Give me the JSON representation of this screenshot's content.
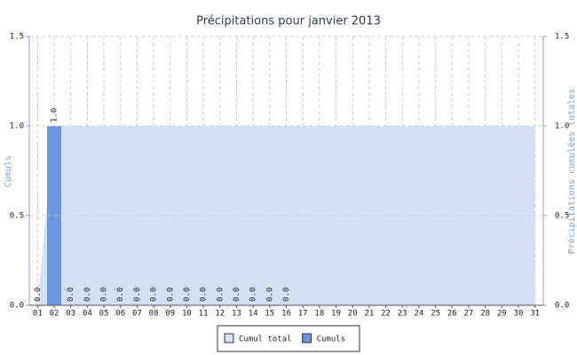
{
  "chart_data": {
    "type": "bar",
    "title": "Précipitations pour janvier 2013",
    "y_label": "Cumuls",
    "y2_label": "Précipitations cumulées totales",
    "categories": [
      "01",
      "02",
      "03",
      "04",
      "05",
      "06",
      "07",
      "08",
      "09",
      "10",
      "11",
      "12",
      "13",
      "14",
      "15",
      "16",
      "17",
      "18",
      "19",
      "20",
      "21",
      "22",
      "23",
      "24",
      "25",
      "26",
      "27",
      "28",
      "29",
      "30",
      "31"
    ],
    "series": [
      {
        "name": "Cumul total",
        "type": "area",
        "axis": "y2",
        "color": "#d3e0f8",
        "values": [
          0,
          1,
          1,
          1,
          1,
          1,
          1,
          1,
          1,
          1,
          1,
          1,
          1,
          1,
          1,
          1,
          1,
          1,
          1,
          1,
          1,
          1,
          1,
          1,
          1,
          1,
          1,
          1,
          1,
          1,
          1
        ]
      },
      {
        "name": "Cumuls",
        "type": "bar",
        "color": "#6b96dc",
        "values": [
          0,
          1,
          0,
          0,
          0,
          0,
          0,
          0,
          0,
          0,
          0,
          0,
          0,
          0,
          0,
          0,
          null,
          null,
          null,
          null,
          null,
          null,
          null,
          null,
          null,
          null,
          null,
          null,
          null,
          null,
          null
        ],
        "value_labels": [
          "0.0",
          "1.0",
          "0.0",
          "0.0",
          "0.0",
          "0.0",
          "0.0",
          "0.0",
          "0.0",
          "0.0",
          "0.0",
          "0.0",
          "0.0",
          "0.0",
          "0.0",
          "0.0",
          null,
          null,
          null,
          null,
          null,
          null,
          null,
          null,
          null,
          null,
          null,
          null,
          null,
          null,
          null
        ]
      }
    ],
    "ylim": [
      0,
      1.5
    ],
    "yticks": [
      {
        "value": 0,
        "label": "0.0"
      },
      {
        "value": 0.5,
        "label": "0.5"
      },
      {
        "value": 1,
        "label": "1.0"
      },
      {
        "value": 1.5,
        "label": "1.5"
      }
    ],
    "y2lim": [
      0,
      1.5
    ],
    "y2ticks": [
      {
        "value": 0,
        "label": "0.0"
      },
      {
        "value": 0.5,
        "label": "0.5"
      },
      {
        "value": 1,
        "label": "1.0"
      },
      {
        "value": 1.5,
        "label": "1.5"
      }
    ],
    "grid": true,
    "legend": "bottom"
  }
}
